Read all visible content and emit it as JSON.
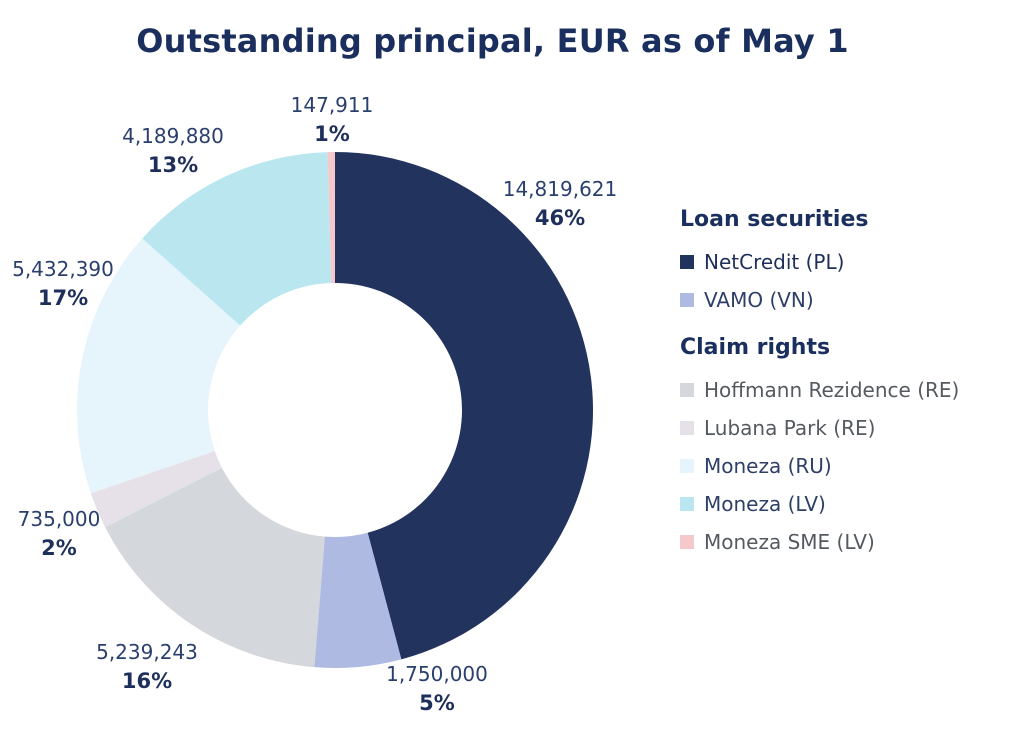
{
  "chart_data": {
    "type": "pie",
    "title": "Outstanding principal, EUR as of May 1",
    "slices": [
      {
        "name": "NetCredit (PL)",
        "group": "Loan securities",
        "value": 14819621,
        "value_label": "14,819,621",
        "pct_label": "46%",
        "color": "#22335e"
      },
      {
        "name": "VAMO (VN)",
        "group": "Loan securities",
        "value": 1750000,
        "value_label": "1,750,000",
        "pct_label": "5%",
        "color": "#aebae2"
      },
      {
        "name": "Hoffmann Rezidence (RE)",
        "group": "Claim rights",
        "value": 5239243,
        "value_label": "5,239,243",
        "pct_label": "16%",
        "color": "#d4d7db"
      },
      {
        "name": "Lubana Park (RE)",
        "group": "Claim rights",
        "value": 735000,
        "value_label": "735,000",
        "pct_label": "2%",
        "color": "#e6e1e8"
      },
      {
        "name": "Moneza (RU)",
        "group": "Claim rights",
        "value": 5432390,
        "value_label": "5,432,390",
        "pct_label": "17%",
        "color": "#e6f4fc"
      },
      {
        "name": "Moneza (LV)",
        "group": "Claim rights",
        "value": 4189880,
        "value_label": "4,189,880",
        "pct_label": "13%",
        "color": "#b9e6ef"
      },
      {
        "name": "Moneza SME (LV)",
        "group": "Claim rights",
        "value": 147911,
        "value_label": "147,911",
        "pct_label": "1%",
        "color": "#f5c8cc"
      }
    ],
    "legend_placement": "right",
    "donut": true
  },
  "legend": {
    "groups": [
      {
        "title": "Loan securities",
        "items": [
          {
            "label": "NetCredit (PL)",
            "color": "#22335e",
            "text_color": "#1f2f5a"
          },
          {
            "label": "VAMO (VN)",
            "color": "#aebae2",
            "text_color": "#2e3f68"
          }
        ]
      },
      {
        "title": "Claim rights",
        "items": [
          {
            "label": "Hoffmann Rezidence (RE)",
            "color": "#d4d7db",
            "text_color": "#555a60"
          },
          {
            "label": "Lubana Park (RE)",
            "color": "#e6e1e8",
            "text_color": "#555a60"
          },
          {
            "label": "Moneza (RU)",
            "color": "#e6f4fc",
            "text_color": "#2e3f68"
          },
          {
            "label": "Moneza (LV)",
            "color": "#b9e6ef",
            "text_color": "#2e3f68"
          },
          {
            "label": "Moneza SME (LV)",
            "color": "#f5c8cc",
            "text_color": "#555a60"
          }
        ]
      }
    ]
  }
}
